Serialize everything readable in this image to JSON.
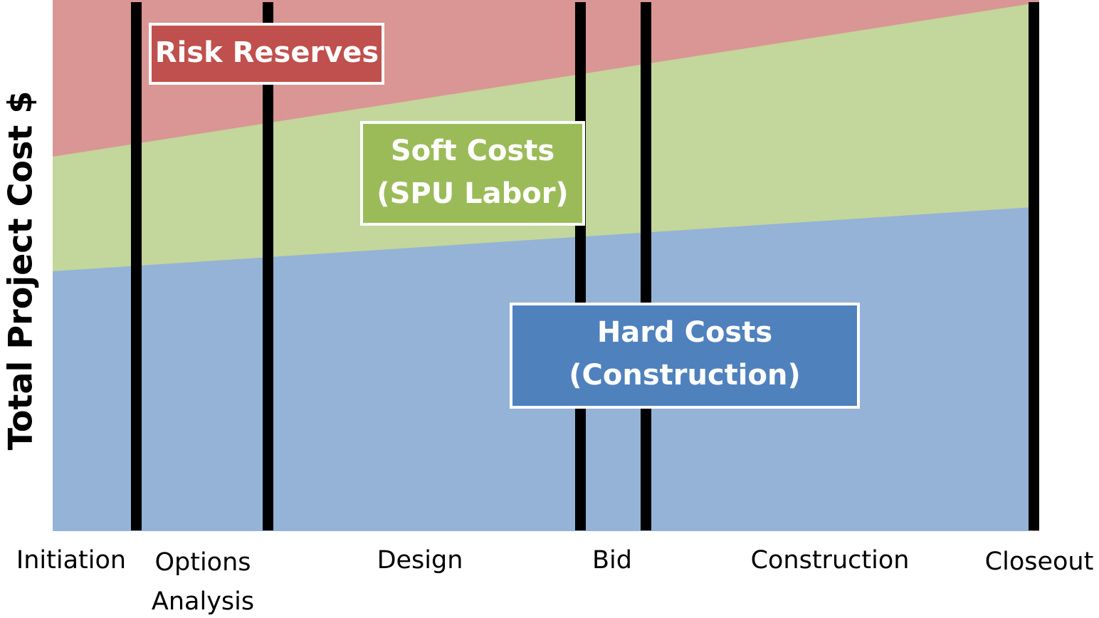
{
  "y_axis_label": "Total Project Cost $",
  "phases": [
    {
      "lines": [
        "Initiation"
      ]
    },
    {
      "lines": [
        "Options",
        "Analysis"
      ]
    },
    {
      "lines": [
        "Design"
      ]
    },
    {
      "lines": [
        "Bid"
      ]
    },
    {
      "lines": [
        "Construction"
      ]
    },
    {
      "lines": [
        "Closeout"
      ]
    }
  ],
  "regions": [
    {
      "lines": [
        "Risk Reserves"
      ]
    },
    {
      "lines": [
        "Soft Costs",
        "(SPU Labor)"
      ]
    },
    {
      "lines": [
        "Hard Costs",
        "(Construction)"
      ]
    }
  ]
}
